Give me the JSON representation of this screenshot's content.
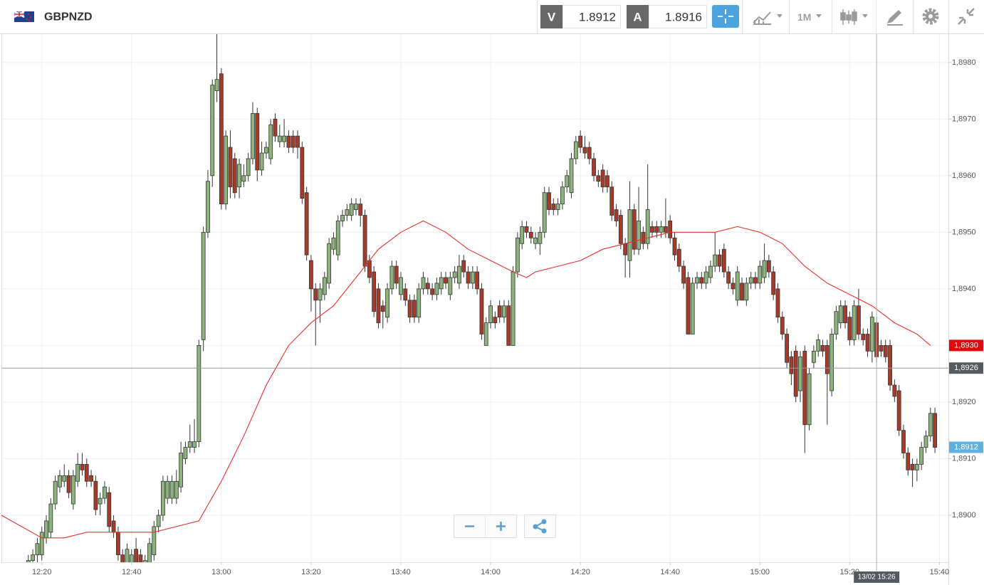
{
  "header": {
    "symbol": "GBPNZD",
    "bid_label": "V",
    "bid": 1.8912,
    "ask_label": "A",
    "ask": 1.8916,
    "timeframe": "1M"
  },
  "chart_data": {
    "type": "candlestick",
    "up_color": "#8cb47c",
    "down_color": "#a83a2a",
    "xlim": [
      "12:11",
      "15:42"
    ],
    "xticks": [
      "12:20",
      "12:40",
      "13:00",
      "13:20",
      "13:40",
      "14:00",
      "14:20",
      "14:40",
      "15:00",
      "15:20",
      "15:40"
    ],
    "ylim": [
      1.88917,
      1.8985
    ],
    "yticks": [
      {
        "value": 1.89,
        "label": "1,8900"
      },
      {
        "value": 1.891,
        "label": "1,8910"
      },
      {
        "value": 1.892,
        "label": "1,8920"
      },
      {
        "value": 1.893,
        "label": "1,8930"
      },
      {
        "value": 1.894,
        "label": "1,8940"
      },
      {
        "value": 1.895,
        "label": "1,8950"
      },
      {
        "value": 1.896,
        "label": "1,8960"
      },
      {
        "value": 1.897,
        "label": "1,8970"
      },
      {
        "value": 1.898,
        "label": "1,8980"
      }
    ],
    "grid": true,
    "x": [
      "12:17",
      "12:18",
      "12:19",
      "12:20",
      "12:21",
      "12:22",
      "12:23",
      "12:24",
      "12:25",
      "12:26",
      "12:27",
      "12:28",
      "12:29",
      "12:30",
      "12:31",
      "12:32",
      "12:33",
      "12:34",
      "12:35",
      "12:36",
      "12:37",
      "12:38",
      "12:39",
      "12:40",
      "12:41",
      "12:42",
      "12:43",
      "12:44",
      "12:45",
      "12:46",
      "12:47",
      "12:48",
      "12:49",
      "12:50",
      "12:51",
      "12:52",
      "12:53",
      "12:54",
      "12:55",
      "12:56",
      "12:57",
      "12:58",
      "12:59",
      "13:00",
      "13:01",
      "13:02",
      "13:03",
      "13:04",
      "13:05",
      "13:06",
      "13:07",
      "13:08",
      "13:09",
      "13:10",
      "13:11",
      "13:12",
      "13:13",
      "13:14",
      "13:15",
      "13:16",
      "13:17",
      "13:18",
      "13:19",
      "13:20",
      "13:21",
      "13:22",
      "13:23",
      "13:24",
      "13:25",
      "13:26",
      "13:27",
      "13:28",
      "13:29",
      "13:30",
      "13:31",
      "13:32",
      "13:33",
      "13:34",
      "13:35",
      "13:36",
      "13:37",
      "13:38",
      "13:39",
      "13:40",
      "13:41",
      "13:42",
      "13:43",
      "13:44",
      "13:45",
      "13:46",
      "13:47",
      "13:48",
      "13:49",
      "13:50",
      "13:51",
      "13:52",
      "13:53",
      "13:54",
      "13:55",
      "13:56",
      "13:57",
      "13:58",
      "13:59",
      "14:00",
      "14:01",
      "14:02",
      "14:03",
      "14:04",
      "14:05",
      "14:06",
      "14:07",
      "14:08",
      "14:09",
      "14:10",
      "14:11",
      "14:12",
      "14:13",
      "14:14",
      "14:15",
      "14:16",
      "14:17",
      "14:18",
      "14:19",
      "14:20",
      "14:21",
      "14:22",
      "14:23",
      "14:24",
      "14:25",
      "14:26",
      "14:27",
      "14:28",
      "14:29",
      "14:30",
      "14:31",
      "14:32",
      "14:33",
      "14:34",
      "14:35",
      "14:36",
      "14:37",
      "14:38",
      "14:39",
      "14:40",
      "14:41",
      "14:42",
      "14:43",
      "14:44",
      "14:45",
      "14:46",
      "14:47",
      "14:48",
      "14:49",
      "14:50",
      "14:51",
      "14:52",
      "14:53",
      "14:54",
      "14:55",
      "14:56",
      "14:57",
      "14:58",
      "14:59",
      "15:00",
      "15:01",
      "15:02",
      "15:03",
      "15:04",
      "15:05",
      "15:06",
      "15:07",
      "15:08",
      "15:09",
      "15:10",
      "15:11",
      "15:12",
      "15:13",
      "15:14",
      "15:15",
      "15:16",
      "15:17",
      "15:18",
      "15:19",
      "15:20",
      "15:21",
      "15:22",
      "15:23",
      "15:24",
      "15:25",
      "15:26",
      "15:27",
      "15:28",
      "15:29",
      "15:30",
      "15:31",
      "15:32",
      "15:33",
      "15:34",
      "15:35",
      "15:36",
      "15:37",
      "15:38",
      "15:39"
    ],
    "open": [
      1.889,
      1.8892,
      1.8893,
      1.8893,
      1.8896,
      1.8897,
      1.8902,
      1.8905,
      1.8906,
      1.8907,
      1.8902,
      1.8906,
      1.8909,
      1.8909,
      1.8907,
      1.8906,
      1.8902,
      1.8903,
      1.8904,
      1.8899,
      1.8897,
      1.8893,
      1.889,
      1.8891,
      1.8894,
      1.8893,
      1.889,
      1.8891,
      1.8893,
      1.8898,
      1.89,
      1.8903,
      1.8903,
      1.8903,
      1.8905,
      1.891,
      1.8912,
      1.8912,
      1.8913,
      1.8931,
      1.895,
      1.896,
      1.8975,
      1.8978,
      1.8955,
      1.8965,
      1.8963,
      1.8958,
      1.8959,
      1.896,
      1.8963,
      1.8971,
      1.8961,
      1.8964,
      1.8963,
      1.897,
      1.8966,
      1.8966,
      1.8967,
      1.8967,
      1.8967,
      1.8965,
      1.8957,
      1.8945,
      1.894,
      1.8938,
      1.8939,
      1.8941,
      1.8947,
      1.8946,
      1.8952,
      1.8953,
      1.8953,
      1.8954,
      1.8955,
      1.8953,
      1.8945,
      1.8943,
      1.894,
      1.8937,
      1.8935,
      1.894,
      1.8944,
      1.8939,
      1.894,
      1.8938,
      1.8938,
      1.8935,
      1.894,
      1.8941,
      1.894,
      1.8939,
      1.894,
      1.8942,
      1.8939,
      1.8942,
      1.8941,
      1.8945,
      1.8943,
      1.8941,
      1.8943,
      1.894,
      1.893,
      1.8934,
      1.8935,
      1.8937,
      1.8935,
      1.8937,
      1.893,
      1.8943,
      1.8948,
      1.8951,
      1.895,
      1.8948,
      1.8948,
      1.895,
      1.8957,
      1.8955,
      1.8954,
      1.8955,
      1.8958,
      1.8957,
      1.8963,
      1.8967,
      1.8965,
      1.8965,
      1.8963,
      1.896,
      1.8961,
      1.896,
      1.8958,
      1.8954,
      1.8953,
      1.8948,
      1.8945,
      1.8954,
      1.8947,
      1.895,
      1.8948,
      1.8951,
      1.8951,
      1.895,
      1.8951,
      1.8952,
      1.8949,
      1.8947,
      1.8944,
      1.8942,
      1.8932,
      1.8941,
      1.8942,
      1.8941,
      1.8942,
      1.8944,
      1.8946,
      1.8947,
      1.8943,
      1.8941,
      1.8938,
      1.8941,
      1.8938,
      1.8941,
      1.8942,
      1.8941,
      1.8942,
      1.8945,
      1.8943,
      1.894,
      1.8935,
      1.8932,
      1.8928,
      1.8929,
      1.8922,
      1.8929,
      1.8916,
      1.8927,
      1.8929,
      1.893,
      1.893,
      1.8922,
      1.8932,
      1.8934,
      1.8937,
      1.8935,
      1.8931,
      1.8937,
      1.8932,
      1.8932,
      1.8929,
      1.8934,
      1.893,
      1.893,
      1.893,
      1.8923,
      1.8922,
      1.8915,
      1.8911,
      1.8909,
      1.8908,
      1.8909,
      1.8912,
      1.8914,
      1.8918
    ],
    "high": [
      1.8893,
      1.8894,
      1.8896,
      1.8898,
      1.89,
      1.8903,
      1.8907,
      1.8908,
      1.8909,
      1.8908,
      1.8908,
      1.8911,
      1.8911,
      1.891,
      1.8908,
      1.8907,
      1.8904,
      1.8906,
      1.8905,
      1.89,
      1.8898,
      1.8894,
      1.8895,
      1.8894,
      1.8896,
      1.8894,
      1.8893,
      1.8896,
      1.8899,
      1.8901,
      1.8907,
      1.8907,
      1.8907,
      1.8908,
      1.8913,
      1.8913,
      1.8916,
      1.8917,
      1.8931,
      1.8951,
      1.8961,
      1.8977,
      1.8985,
      1.8979,
      1.8968,
      1.8968,
      1.8964,
      1.8963,
      1.8962,
      1.8964,
      1.8973,
      1.8972,
      1.8966,
      1.8966,
      1.897,
      1.8971,
      1.8969,
      1.897,
      1.8968,
      1.8968,
      1.8968,
      1.8966,
      1.8958,
      1.8946,
      1.8941,
      1.8941,
      1.8943,
      1.8949,
      1.895,
      1.8953,
      1.8954,
      1.8955,
      1.8956,
      1.8956,
      1.8956,
      1.8954,
      1.8946,
      1.8944,
      1.8941,
      1.8938,
      1.8941,
      1.8945,
      1.8945,
      1.8943,
      1.8941,
      1.8939,
      1.8939,
      1.8941,
      1.8943,
      1.8942,
      1.8941,
      1.8942,
      1.8943,
      1.8943,
      1.8943,
      1.8944,
      1.8946,
      1.8946,
      1.8944,
      1.8944,
      1.8944,
      1.8941,
      1.8935,
      1.8938,
      1.8936,
      1.8938,
      1.8938,
      1.8938,
      1.8944,
      1.895,
      1.8952,
      1.8952,
      1.8951,
      1.895,
      1.8951,
      1.8958,
      1.8958,
      1.8956,
      1.8956,
      1.8959,
      1.8961,
      1.8964,
      1.8967,
      1.8968,
      1.8967,
      1.8966,
      1.8964,
      1.8961,
      1.8962,
      1.8961,
      1.8959,
      1.8955,
      1.8954,
      1.8949,
      1.8959,
      1.8955,
      1.8958,
      1.8951,
      1.8962,
      1.8952,
      1.8952,
      1.8952,
      1.8956,
      1.8953,
      1.895,
      1.8948,
      1.8945,
      1.8943,
      1.8942,
      1.8943,
      1.8943,
      1.8944,
      1.8945,
      1.895,
      1.8947,
      1.8948,
      1.8944,
      1.8942,
      1.8944,
      1.8942,
      1.8942,
      1.8943,
      1.8943,
      1.8945,
      1.8948,
      1.8946,
      1.8944,
      1.8941,
      1.8936,
      1.8933,
      1.8929,
      1.893,
      1.8929,
      1.893,
      1.8926,
      1.893,
      1.8932,
      1.8931,
      1.8931,
      1.8933,
      1.8937,
      1.8938,
      1.8938,
      1.8936,
      1.8938,
      1.894,
      1.8933,
      1.8933,
      1.8936,
      1.8935,
      1.8931,
      1.8931,
      1.8931,
      1.8924,
      1.8923,
      1.8916,
      1.8912,
      1.891,
      1.891,
      1.8913,
      1.8915,
      1.8919,
      1.8919
    ],
    "low": [
      1.8888,
      1.889,
      1.8891,
      1.8892,
      1.8895,
      1.8896,
      1.8901,
      1.8904,
      1.8905,
      1.8903,
      1.8901,
      1.8905,
      1.8907,
      1.8905,
      1.8905,
      1.89,
      1.89,
      1.8902,
      1.8897,
      1.8896,
      1.8892,
      1.8889,
      1.8889,
      1.889,
      1.889,
      1.8889,
      1.8889,
      1.889,
      1.8892,
      1.8897,
      1.8899,
      1.8902,
      1.8902,
      1.8902,
      1.8904,
      1.8909,
      1.8911,
      1.8911,
      1.8912,
      1.8929,
      1.8949,
      1.8958,
      1.8973,
      1.8954,
      1.8954,
      1.8956,
      1.8956,
      1.8956,
      1.8958,
      1.8959,
      1.8962,
      1.8959,
      1.896,
      1.8963,
      1.8962,
      1.8966,
      1.8965,
      1.8965,
      1.8964,
      1.8964,
      1.8963,
      1.8955,
      1.8945,
      1.8936,
      1.893,
      1.8934,
      1.8938,
      1.894,
      1.8946,
      1.8945,
      1.8951,
      1.8952,
      1.8952,
      1.8953,
      1.8951,
      1.8943,
      1.8941,
      1.8935,
      1.8933,
      1.8933,
      1.8934,
      1.8939,
      1.894,
      1.8938,
      1.8937,
      1.8934,
      1.8934,
      1.8934,
      1.8939,
      1.8939,
      1.8938,
      1.8938,
      1.8939,
      1.894,
      1.8938,
      1.8941,
      1.894,
      1.8942,
      1.894,
      1.894,
      1.8939,
      1.8931,
      1.893,
      1.8933,
      1.8933,
      1.8934,
      1.8934,
      1.893,
      1.893,
      1.8942,
      1.8947,
      1.8949,
      1.8948,
      1.8947,
      1.8946,
      1.8949,
      1.8953,
      1.8953,
      1.8953,
      1.8954,
      1.8957,
      1.8956,
      1.8962,
      1.8964,
      1.8963,
      1.8962,
      1.8959,
      1.8958,
      1.8957,
      1.8957,
      1.8952,
      1.8951,
      1.8947,
      1.8942,
      1.8942,
      1.8946,
      1.8946,
      1.8947,
      1.8947,
      1.8949,
      1.8949,
      1.8949,
      1.8949,
      1.8948,
      1.8945,
      1.8943,
      1.894,
      1.8932,
      1.8932,
      1.894,
      1.894,
      1.894,
      1.8941,
      1.8943,
      1.8943,
      1.8942,
      1.894,
      1.8939,
      1.8937,
      1.8938,
      1.8937,
      1.894,
      1.894,
      1.894,
      1.8941,
      1.8942,
      1.8938,
      1.8934,
      1.8931,
      1.8926,
      1.8923,
      1.892,
      1.892,
      1.8911,
      1.8915,
      1.8926,
      1.8928,
      1.8928,
      1.8916,
      1.8921,
      1.8931,
      1.8933,
      1.8933,
      1.893,
      1.893,
      1.8931,
      1.893,
      1.8928,
      1.8927,
      1.8927,
      1.8928,
      1.8927,
      1.8922,
      1.892,
      1.8914,
      1.891,
      1.8907,
      1.8905,
      1.8906,
      1.8908,
      1.8911,
      1.8913,
      1.8911
    ],
    "close": [
      1.8892,
      1.8893,
      1.8895,
      1.8897,
      1.8899,
      1.8902,
      1.8906,
      1.8907,
      1.8907,
      1.8904,
      1.8907,
      1.8909,
      1.8908,
      1.8906,
      1.8906,
      1.8901,
      1.8903,
      1.8905,
      1.8898,
      1.8897,
      1.8893,
      1.889,
      1.8894,
      1.8893,
      1.8891,
      1.889,
      1.8892,
      1.8895,
      1.8898,
      1.89,
      1.8906,
      1.8906,
      1.8906,
      1.8906,
      1.8911,
      1.8912,
      1.8913,
      1.8913,
      1.893,
      1.895,
      1.8959,
      1.8976,
      1.8977,
      1.8955,
      1.8967,
      1.8958,
      1.8957,
      1.8962,
      1.896,
      1.8963,
      1.8971,
      1.8961,
      1.8964,
      1.8965,
      1.8969,
      1.8967,
      1.8967,
      1.8967,
      1.8965,
      1.8965,
      1.8965,
      1.8956,
      1.8946,
      1.894,
      1.8938,
      1.894,
      1.8942,
      1.8948,
      1.8949,
      1.8952,
      1.8953,
      1.8954,
      1.8955,
      1.8955,
      1.8953,
      1.8944,
      1.8942,
      1.8936,
      1.8934,
      1.8936,
      1.894,
      1.8944,
      1.8941,
      1.8942,
      1.8938,
      1.8935,
      1.8935,
      1.894,
      1.8942,
      1.894,
      1.8939,
      1.8941,
      1.8942,
      1.8941,
      1.8942,
      1.8943,
      1.8944,
      1.8943,
      1.8941,
      1.8943,
      1.894,
      1.8932,
      1.8934,
      1.8937,
      1.8934,
      1.8935,
      1.8937,
      1.893,
      1.8943,
      1.8949,
      1.8951,
      1.895,
      1.8949,
      1.8949,
      1.895,
      1.8957,
      1.8954,
      1.8954,
      1.8955,
      1.8958,
      1.896,
      1.8963,
      1.8966,
      1.8965,
      1.8964,
      1.8963,
      1.896,
      1.8959,
      1.8958,
      1.8958,
      1.8953,
      1.8952,
      1.8948,
      1.8946,
      1.8954,
      1.8947,
      1.8952,
      1.8948,
      1.8954,
      1.895,
      1.895,
      1.8951,
      1.895,
      1.8949,
      1.8946,
      1.8944,
      1.8941,
      1.8932,
      1.8941,
      1.8942,
      1.8941,
      1.8943,
      1.8944,
      1.8946,
      1.8944,
      1.8943,
      1.8941,
      1.894,
      1.8943,
      1.8938,
      1.8941,
      1.8942,
      1.8941,
      1.8944,
      1.8945,
      1.8943,
      1.8939,
      1.8935,
      1.8932,
      1.8927,
      1.8925,
      1.8921,
      1.8928,
      1.8916,
      1.8925,
      1.8929,
      1.8931,
      1.8929,
      1.8925,
      1.8932,
      1.8936,
      1.8937,
      1.8934,
      1.8931,
      1.8937,
      1.8932,
      1.8931,
      1.8929,
      1.8935,
      1.8928,
      1.8929,
      1.8928,
      1.8923,
      1.8921,
      1.8915,
      1.8911,
      1.8908,
      1.8908,
      1.8909,
      1.8912,
      1.8914,
      1.8918,
      1.8912
    ],
    "ma": {
      "color": "#e8302a",
      "x": [
        "12:11",
        "12:20",
        "12:25",
        "12:30",
        "12:35",
        "12:40",
        "12:45",
        "12:50",
        "12:55",
        "13:00",
        "13:05",
        "13:10",
        "13:15",
        "13:20",
        "13:25",
        "13:30",
        "13:35",
        "13:40",
        "13:45",
        "13:50",
        "13:55",
        "14:00",
        "14:05",
        "14:08",
        "14:10",
        "14:15",
        "14:20",
        "14:25",
        "14:30",
        "14:35",
        "14:40",
        "14:45",
        "14:50",
        "14:55",
        "15:00",
        "15:05",
        "15:10",
        "15:15",
        "15:20",
        "15:25",
        "15:30",
        "15:35",
        "15:38"
      ],
      "values": [
        1.89,
        1.8896,
        1.8896,
        1.8897,
        1.8897,
        1.8897,
        1.8897,
        1.8898,
        1.8899,
        1.8906,
        1.8914,
        1.8923,
        1.893,
        1.8934,
        1.8937,
        1.8942,
        1.8947,
        1.895,
        1.8952,
        1.895,
        1.8947,
        1.8945,
        1.8943,
        1.8942,
        1.8943,
        1.8944,
        1.8945,
        1.8947,
        1.8948,
        1.8949,
        1.895,
        1.895,
        1.895,
        1.8951,
        1.895,
        1.8948,
        1.8944,
        1.8941,
        1.8939,
        1.8937,
        1.8934,
        1.8932,
        1.893
      ]
    },
    "markers": [
      {
        "value": 1.893,
        "label": "1,8930",
        "color": "#e00a0a"
      },
      {
        "value": 1.8912,
        "label": "1,8912",
        "color": "#5fb1dc"
      }
    ],
    "crosshair": {
      "time": "15:26",
      "time_label": "13/02 15:26",
      "value": 1.8926,
      "value_label": "1,8926",
      "color": "#555a60"
    }
  }
}
